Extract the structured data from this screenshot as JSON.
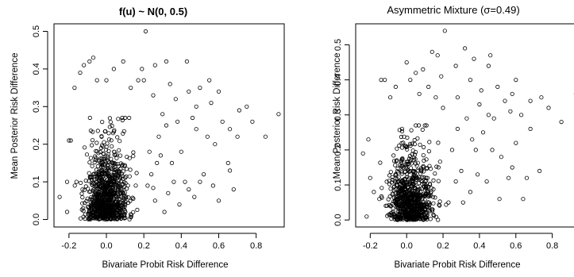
{
  "chart_data": [
    {
      "type": "scatter",
      "title": "f(u) ~ N(0, 0.5)",
      "xlabel": "Bivariate Probit Risk Difference",
      "ylabel": "Mean Posterior Risk Difference",
      "xlim": [
        -0.28,
        0.95
      ],
      "ylim": [
        -0.02,
        0.52
      ],
      "xticks": [
        "-0.2",
        "0.0",
        "0.2",
        "0.4",
        "0.6",
        "0.8"
      ],
      "xtick_values": [
        -0.2,
        0.0,
        0.2,
        0.4,
        0.6,
        0.8
      ],
      "yticks": [
        "0.0",
        "0.1",
        "0.2",
        "0.3",
        "0.4",
        "0.5"
      ],
      "ytick_values": [
        0.0,
        0.1,
        0.2,
        0.3,
        0.4,
        0.5
      ],
      "marker": "open-circle",
      "points": [
        [
          0.21,
          0.5
        ],
        [
          -0.07,
          0.43
        ],
        [
          -0.09,
          0.42
        ],
        [
          0.09,
          0.42
        ],
        [
          -0.12,
          0.41
        ],
        [
          0.43,
          0.42
        ],
        [
          0.32,
          0.42
        ],
        [
          -0.14,
          0.39
        ],
        [
          0.19,
          0.4
        ],
        [
          0.26,
          0.41
        ],
        [
          0.04,
          0.4
        ],
        [
          0.2,
          0.37
        ],
        [
          0.0,
          0.37
        ],
        [
          0.17,
          0.37
        ],
        [
          0.55,
          0.37
        ],
        [
          -0.05,
          0.37
        ],
        [
          0.34,
          0.36
        ],
        [
          0.5,
          0.35
        ],
        [
          0.6,
          0.34
        ],
        [
          -0.17,
          0.35
        ],
        [
          0.13,
          0.35
        ],
        [
          0.44,
          0.34
        ],
        [
          0.37,
          0.32
        ],
        [
          0.25,
          0.33
        ],
        [
          0.56,
          0.31
        ],
        [
          0.92,
          0.28
        ],
        [
          0.78,
          0.26
        ],
        [
          0.85,
          0.22
        ],
        [
          0.62,
          0.26
        ],
        [
          0.66,
          0.24
        ],
        [
          0.7,
          0.22
        ],
        [
          0.54,
          0.22
        ],
        [
          0.48,
          0.24
        ],
        [
          0.58,
          0.2
        ],
        [
          0.65,
          0.15
        ],
        [
          0.66,
          0.13
        ],
        [
          0.68,
          0.08
        ],
        [
          0.5,
          0.1
        ],
        [
          0.44,
          0.08
        ],
        [
          0.36,
          0.1
        ],
        [
          0.39,
          0.04
        ],
        [
          0.33,
          0.07
        ],
        [
          0.47,
          0.06
        ],
        [
          0.42,
          0.1
        ],
        [
          0.57,
          0.09
        ],
        [
          0.31,
          0.02
        ],
        [
          -0.25,
          0.06
        ],
        [
          -0.21,
          0.1
        ],
        [
          -0.2,
          0.21
        ],
        [
          -0.19,
          0.21
        ],
        [
          -0.21,
          0.02
        ],
        [
          -0.16,
          0.1
        ],
        [
          0.3,
          0.28
        ],
        [
          0.28,
          0.22
        ],
        [
          0.27,
          0.15
        ],
        [
          0.23,
          0.18
        ],
        [
          0.24,
          0.12
        ],
        [
          0.26,
          0.05
        ],
        [
          0.22,
          0.09
        ],
        [
          0.29,
          0.17
        ],
        [
          0.35,
          0.15
        ],
        [
          0.4,
          0.18
        ],
        [
          0.32,
          0.25
        ],
        [
          0.46,
          0.27
        ],
        [
          0.52,
          0.12
        ],
        [
          0.6,
          0.05
        ],
        [
          0.75,
          0.3
        ],
        [
          0.71,
          0.29
        ],
        [
          0.48,
          0.3
        ],
        [
          0.38,
          0.26
        ]
      ],
      "cluster": {
        "x_center": 0.0,
        "x_spread": 0.055,
        "y_center": 0.08,
        "y_spread": 0.08,
        "count": 900,
        "seed": 11
      }
    },
    {
      "type": "scatter",
      "title": "Asymmetric Mixture (σ=0.49)",
      "xlabel": "Bivariate Probit Risk Difference",
      "ylabel": "Mean Posterior Risk Difference",
      "xlim": [
        -0.28,
        0.95
      ],
      "ylim": [
        -0.02,
        0.56
      ],
      "xticks": [
        "-0.2",
        "0.0",
        "0.2",
        "0.4",
        "0.6",
        "0.8"
      ],
      "xtick_values": [
        -0.2,
        0.0,
        0.2,
        0.4,
        0.6,
        0.8
      ],
      "yticks": [
        "0.0",
        "0.1",
        "0.2",
        "0.3",
        "0.4",
        "0.5"
      ],
      "ytick_values": [
        0.0,
        0.1,
        0.2,
        0.3,
        0.4,
        0.5
      ],
      "marker": "open-circle",
      "points": [
        [
          0.21,
          0.54
        ],
        [
          0.32,
          0.49
        ],
        [
          0.14,
          0.48
        ],
        [
          0.17,
          0.47
        ],
        [
          0.46,
          0.47
        ],
        [
          0.37,
          0.46
        ],
        [
          0.0,
          0.45
        ],
        [
          0.05,
          0.42
        ],
        [
          0.09,
          0.43
        ],
        [
          0.27,
          0.44
        ],
        [
          0.45,
          0.44
        ],
        [
          -0.12,
          0.4
        ],
        [
          -0.14,
          0.4
        ],
        [
          0.19,
          0.41
        ],
        [
          0.35,
          0.4
        ],
        [
          0.02,
          0.4
        ],
        [
          0.5,
          0.38
        ],
        [
          0.41,
          0.37
        ],
        [
          0.58,
          0.36
        ],
        [
          0.54,
          0.34
        ],
        [
          0.74,
          0.35
        ],
        [
          0.93,
          0.36
        ],
        [
          0.68,
          0.34
        ],
        [
          0.85,
          0.28
        ],
        [
          0.63,
          0.3
        ],
        [
          0.78,
          0.32
        ],
        [
          0.48,
          0.29
        ],
        [
          0.45,
          0.3
        ],
        [
          0.73,
          0.14
        ],
        [
          0.58,
          0.15
        ],
        [
          0.56,
          0.12
        ],
        [
          0.66,
          0.12
        ],
        [
          0.64,
          0.06
        ],
        [
          0.39,
          0.13
        ],
        [
          0.35,
          0.08
        ],
        [
          0.44,
          0.11
        ],
        [
          0.51,
          0.06
        ],
        [
          0.31,
          0.05
        ],
        [
          0.38,
          0.2
        ],
        [
          0.42,
          0.25
        ],
        [
          0.28,
          0.26
        ],
        [
          0.3,
          0.14
        ],
        [
          0.25,
          0.2
        ],
        [
          0.33,
          0.29
        ],
        [
          0.27,
          0.11
        ],
        [
          0.23,
          0.05
        ],
        [
          -0.22,
          0.01
        ],
        [
          -0.2,
          0.12
        ],
        [
          -0.18,
          0.08
        ],
        [
          -0.15,
          0.06
        ],
        [
          -0.24,
          0.19
        ],
        [
          -0.21,
          0.23
        ],
        [
          0.68,
          0.26
        ],
        [
          0.6,
          0.22
        ],
        [
          0.52,
          0.18
        ],
        [
          0.47,
          0.2
        ],
        [
          0.4,
          0.33
        ],
        [
          0.2,
          0.32
        ],
        [
          0.16,
          0.35
        ],
        [
          0.12,
          0.38
        ],
        [
          -0.06,
          0.38
        ],
        [
          -0.09,
          0.35
        ],
        [
          0.07,
          0.36
        ],
        [
          0.28,
          0.35
        ],
        [
          0.6,
          0.4
        ],
        [
          0.57,
          0.31
        ],
        [
          0.36,
          0.23
        ]
      ],
      "cluster": {
        "x_center": 0.02,
        "x_spread": 0.06,
        "y_center": 0.07,
        "y_spread": 0.08,
        "count": 800,
        "seed": 29
      }
    }
  ]
}
